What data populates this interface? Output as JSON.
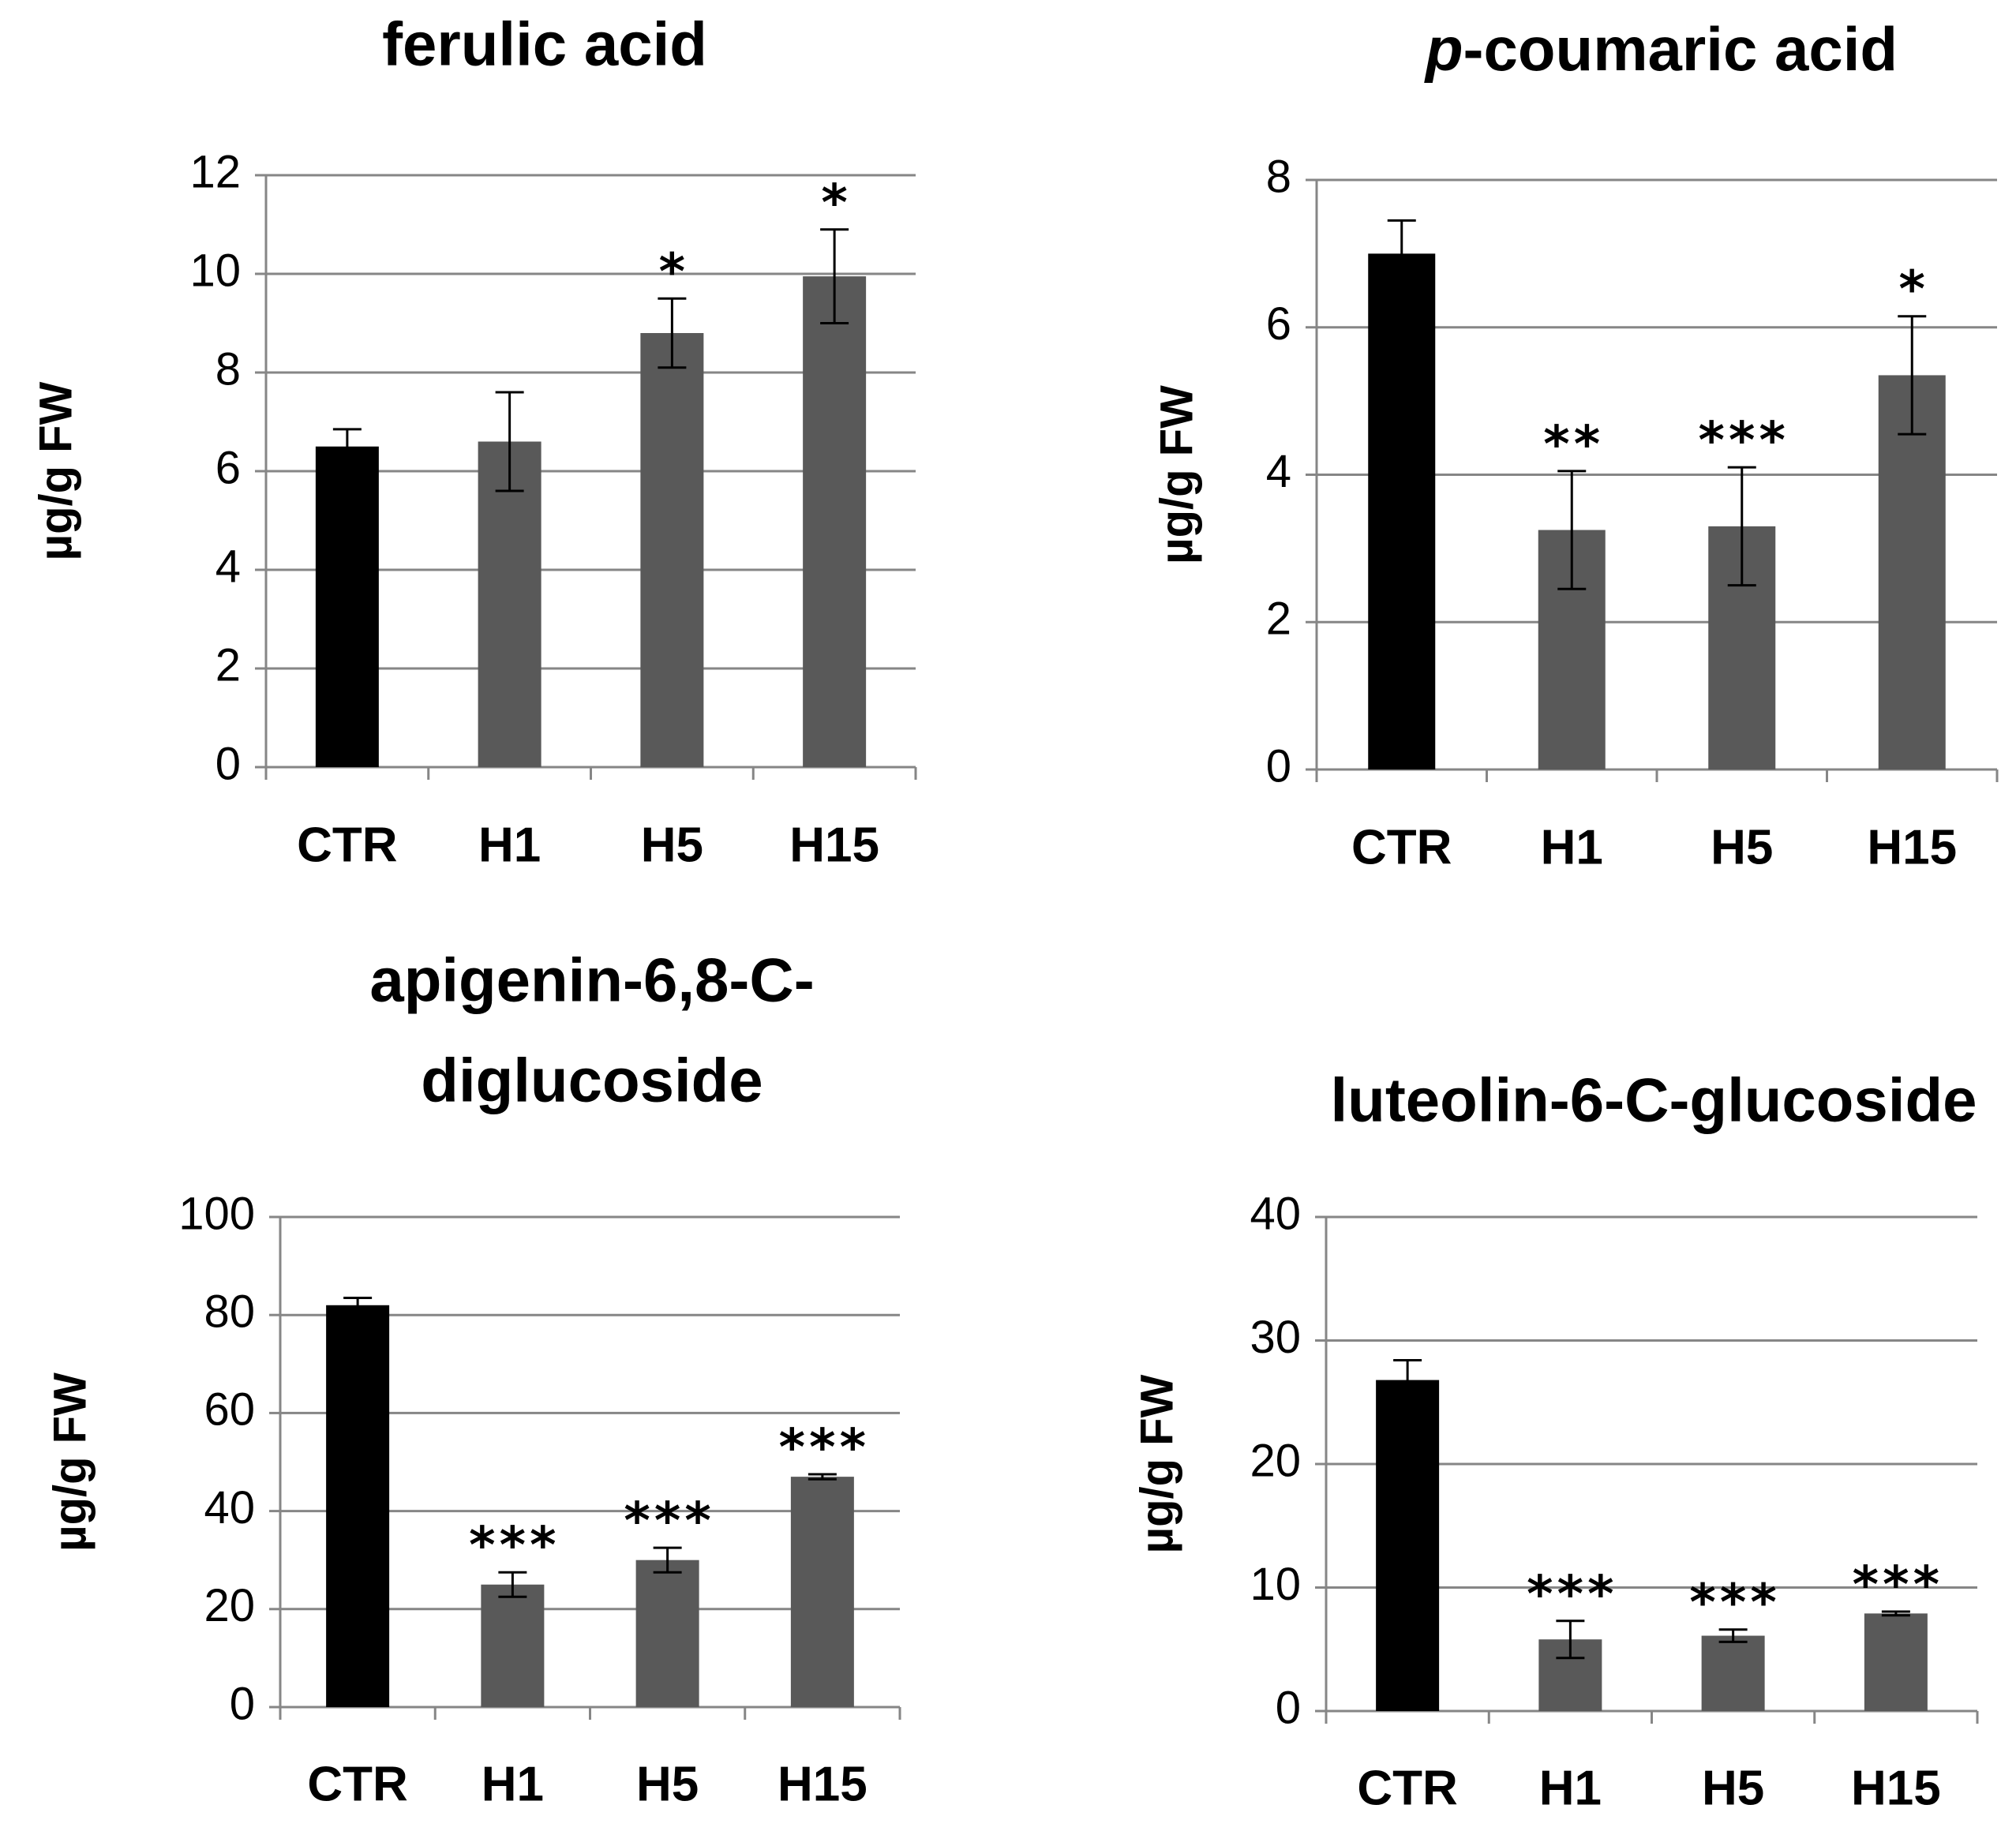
{
  "chart_data": [
    {
      "type": "bar",
      "title": "ferulic acid",
      "title_parts": [],
      "ylabel": "µg/g FW",
      "categories": [
        "CTR",
        "H1",
        "H5",
        "H15"
      ],
      "values": [
        6.5,
        6.6,
        8.8,
        9.95
      ],
      "errors": [
        0.35,
        1.0,
        0.7,
        0.95
      ],
      "significance": [
        "",
        "",
        "*",
        "*"
      ],
      "bar_colors": [
        "#000000",
        "#595959",
        "#595959",
        "#595959"
      ],
      "ylim": [
        0,
        12
      ],
      "yticks": [
        0,
        2,
        4,
        6,
        8,
        10,
        12
      ],
      "grid": true
    },
    {
      "type": "bar",
      "title": "p-coumaric acid",
      "title_parts": [
        {
          "text": "p",
          "italic": true
        },
        {
          "text": "-coumaric acid",
          "italic": false
        }
      ],
      "ylabel": "µg/g FW",
      "categories": [
        "CTR",
        "H1",
        "H5",
        "H15"
      ],
      "values": [
        7.0,
        3.25,
        3.3,
        5.35
      ],
      "errors": [
        0.45,
        0.8,
        0.8,
        0.8
      ],
      "significance": [
        "",
        "**",
        "***",
        "*"
      ],
      "bar_colors": [
        "#000000",
        "#595959",
        "#595959",
        "#595959"
      ],
      "ylim": [
        0,
        8
      ],
      "yticks": [
        0,
        2,
        4,
        6,
        8
      ],
      "grid": true
    },
    {
      "type": "bar",
      "title": "apigenin-6,8-C-diglucoside",
      "title_lines": [
        "apigenin-6,8-C-",
        "diglucoside"
      ],
      "title_parts": [],
      "ylabel": "µg/g FW",
      "categories": [
        "CTR",
        "H1",
        "H5",
        "H15"
      ],
      "values": [
        82,
        25,
        30,
        47
      ],
      "errors": [
        1.5,
        2.5,
        2.5,
        0.5
      ],
      "significance": [
        "",
        "***",
        "***",
        "***"
      ],
      "bar_colors": [
        "#000000",
        "#595959",
        "#595959",
        "#595959"
      ],
      "ylim": [
        0,
        100
      ],
      "yticks": [
        0,
        20,
        40,
        60,
        80,
        100
      ],
      "grid": true
    },
    {
      "type": "bar",
      "title": "luteolin-6-C-glucoside",
      "title_parts": [],
      "ylabel": "µg/g FW",
      "categories": [
        "CTR",
        "H1",
        "H5",
        "H15"
      ],
      "values": [
        26.8,
        5.8,
        6.1,
        7.9
      ],
      "errors": [
        1.6,
        1.5,
        0.5,
        0.15
      ],
      "significance": [
        "",
        "***",
        "***",
        "***"
      ],
      "bar_colors": [
        "#000000",
        "#595959",
        "#595959",
        "#595959"
      ],
      "ylim": [
        0,
        40
      ],
      "yticks": [
        0,
        10,
        20,
        30,
        40
      ],
      "grid": true
    }
  ]
}
